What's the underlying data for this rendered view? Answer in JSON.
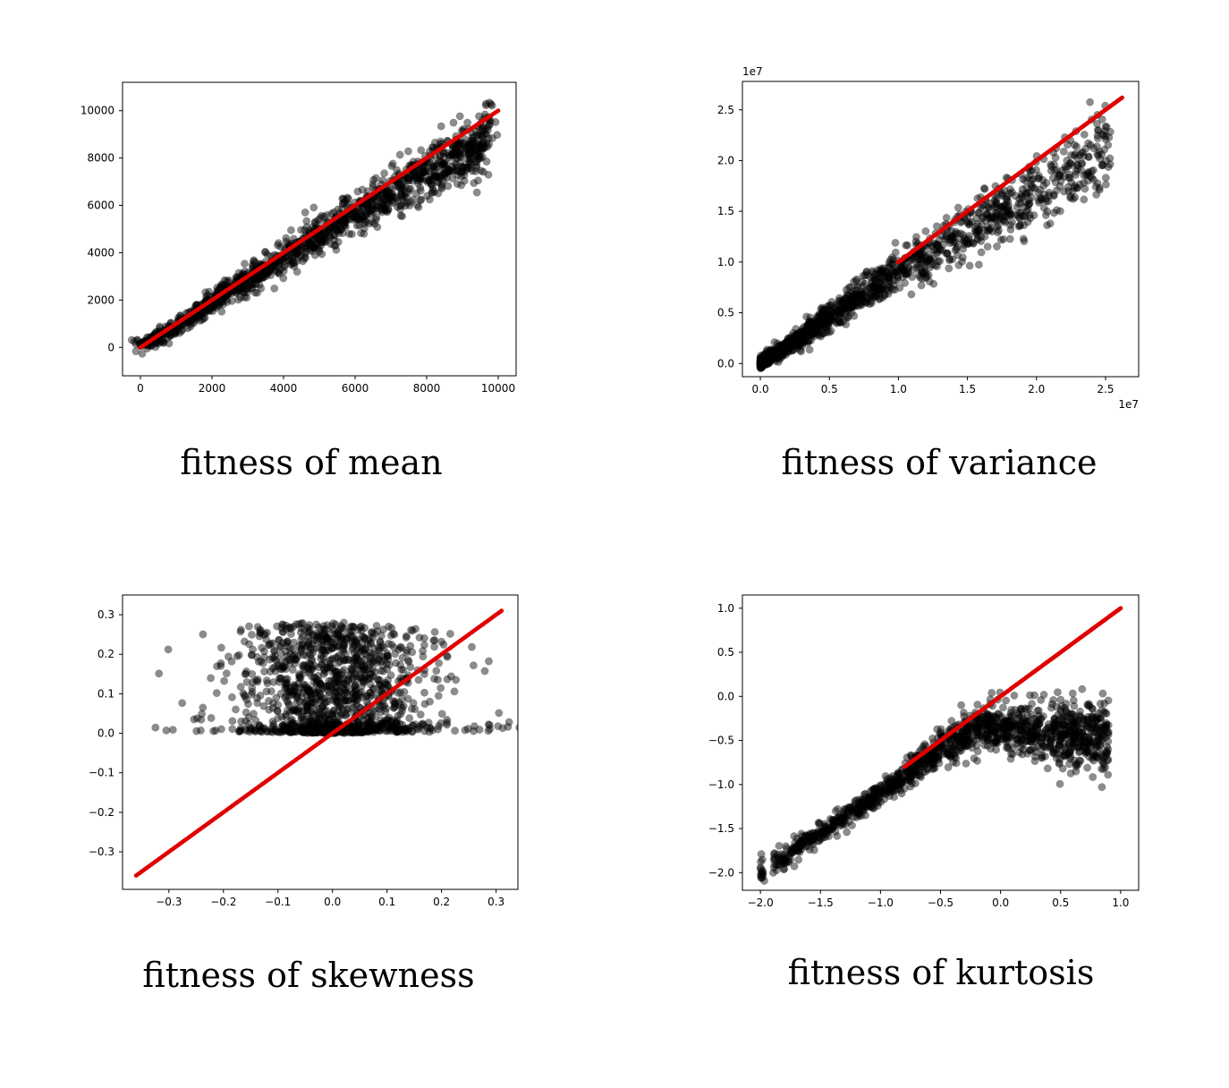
{
  "chart_data": [
    {
      "type": "scatter",
      "caption": "fitness of mean",
      "xlim": [
        -500,
        10500
      ],
      "ylim": [
        -1200,
        11200
      ],
      "xticks": [
        0,
        2000,
        4000,
        6000,
        8000,
        10000
      ],
      "yticks": [
        0,
        2000,
        4000,
        6000,
        8000,
        10000
      ],
      "xtick_labels": [
        "0",
        "2000",
        "4000",
        "6000",
        "8000",
        "10000"
      ],
      "ytick_labels": [
        "0",
        "2000",
        "4000",
        "6000",
        "8000",
        "10000"
      ],
      "x_offset_label": "",
      "y_offset_label": "",
      "grid": false,
      "series": [
        {
          "marker_color": "#000000",
          "opacity": 0.45,
          "x": [
            0,
            500,
            1000,
            1500,
            2000,
            2500,
            3000,
            3500,
            4000,
            4500,
            5000,
            5500,
            6000,
            6500,
            7000,
            7500,
            8000,
            8500,
            9000,
            9500,
            9800
          ],
          "y": [
            100,
            400,
            900,
            1400,
            1900,
            2350,
            2850,
            3300,
            3800,
            4250,
            4700,
            5200,
            5650,
            6100,
            6550,
            7000,
            7400,
            7750,
            8100,
            8500,
            9800
          ]
        },
        {
          "marker_color": "#e00000",
          "opacity": 1.0,
          "x": [
            0,
            9500,
            10000
          ],
          "y": [
            0,
            9500,
            10000
          ]
        }
      ]
    },
    {
      "type": "scatter",
      "caption": "fitness of variance",
      "xlim": [
        -1300000,
        27400000
      ],
      "ylim": [
        -1300000,
        27800000
      ],
      "xticks": [
        0,
        5000000,
        10000000,
        15000000,
        20000000,
        25000000
      ],
      "yticks": [
        0,
        5000000,
        10000000,
        15000000,
        20000000,
        25000000
      ],
      "xtick_labels": [
        "0.0",
        "0.5",
        "1.0",
        "1.5",
        "2.0",
        "2.5"
      ],
      "ytick_labels": [
        "0.0",
        "0.5",
        "1.0",
        "1.5",
        "2.0",
        "2.5"
      ],
      "x_offset_label": "1e7",
      "y_offset_label": "1e7",
      "grid": false,
      "series": [
        {
          "marker_color": "#000000",
          "opacity": 0.45,
          "x": [
            0,
            2500000,
            5000000,
            7500000,
            10000000,
            12500000,
            15000000,
            17500000,
            20000000,
            22500000,
            25000000
          ],
          "y": [
            0,
            2200000,
            4500000,
            6800000,
            9200000,
            11200000,
            13200000,
            15200000,
            17000000,
            19000000,
            21000000
          ]
        },
        {
          "marker_color": "#e00000",
          "opacity": 1.0,
          "x": [
            10000000,
            26200000
          ],
          "y": [
            10000000,
            26200000
          ]
        }
      ]
    },
    {
      "type": "scatter",
      "caption": "fitness of skewness",
      "xlim": [
        -0.385,
        0.34
      ],
      "ylim": [
        -0.395,
        0.35
      ],
      "xticks": [
        -0.3,
        -0.2,
        -0.1,
        0.0,
        0.1,
        0.2,
        0.3
      ],
      "yticks": [
        -0.3,
        -0.2,
        -0.1,
        0.0,
        0.1,
        0.2,
        0.3
      ],
      "xtick_labels": [
        "−0.3",
        "−0.2",
        "−0.1",
        "0.0",
        "0.1",
        "0.2",
        "0.3"
      ],
      "ytick_labels": [
        "−0.3",
        "−0.2",
        "−0.1",
        "0.0",
        "0.1",
        "0.2",
        "0.3"
      ],
      "x_offset_label": "",
      "y_offset_label": "",
      "grid": false,
      "series": [
        {
          "marker_color": "#000000",
          "opacity": 0.45,
          "x": [
            -0.36,
            -0.3,
            -0.2,
            -0.1,
            0.0,
            0.1,
            0.2,
            0.3
          ],
          "y": [
            0.25,
            0.19,
            0.19,
            0.18,
            0.17,
            0.16,
            0.19,
            0.14
          ]
        },
        {
          "marker_color": "#e00000",
          "opacity": 1.0,
          "x": [
            -0.36,
            0.31
          ],
          "y": [
            -0.36,
            0.31
          ]
        }
      ]
    },
    {
      "type": "scatter",
      "caption": "fitness of kurtosis",
      "xlim": [
        -2.15,
        1.15
      ],
      "ylim": [
        -2.2,
        1.15
      ],
      "xticks": [
        -2.0,
        -1.5,
        -1.0,
        -0.5,
        0.0,
        0.5,
        1.0
      ],
      "yticks": [
        -2.0,
        -1.5,
        -1.0,
        -0.5,
        0.0,
        0.5,
        1.0
      ],
      "xtick_labels": [
        "−2.0",
        "−1.5",
        "−1.0",
        "−0.5",
        "0.0",
        "0.5",
        "1.0"
      ],
      "ytick_labels": [
        "−2.0",
        "−1.5",
        "−1.0",
        "−0.5",
        "0.0",
        "0.5",
        "1.0"
      ],
      "x_offset_label": "",
      "y_offset_label": "",
      "grid": false,
      "series": [
        {
          "marker_color": "#000000",
          "opacity": 0.45,
          "x": [
            -2.0,
            -1.5,
            -1.0,
            -0.5,
            -0.25,
            0.0,
            0.5,
            1.0
          ],
          "y": [
            -2.0,
            -1.55,
            -1.1,
            -0.6,
            -0.4,
            -0.35,
            -0.45,
            -0.45
          ]
        },
        {
          "marker_color": "#e00000",
          "opacity": 1.0,
          "x": [
            -0.8,
            1.0
          ],
          "y": [
            -0.8,
            1.0
          ]
        }
      ]
    }
  ]
}
